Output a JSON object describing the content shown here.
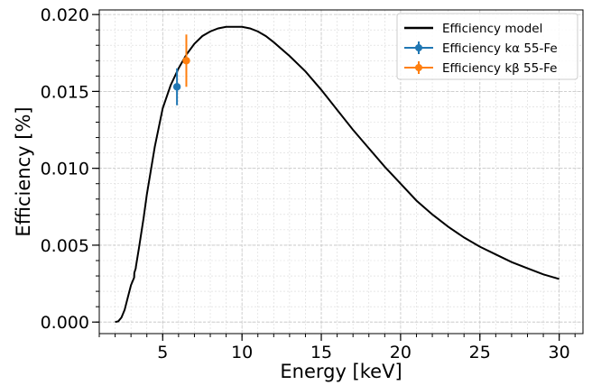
{
  "chart_data": {
    "type": "line",
    "xlabel": "Energy [keV]",
    "ylabel": "Efficiency [%]",
    "xlim": [
      1.0,
      31.5
    ],
    "ylim": [
      -0.00075,
      0.0203
    ],
    "xticks": [
      5,
      10,
      15,
      20,
      25,
      30
    ],
    "xtick_labels": [
      "5",
      "10",
      "15",
      "20",
      "25",
      "30"
    ],
    "yticks": [
      0.0,
      0.005,
      0.01,
      0.015,
      0.02
    ],
    "ytick_labels": [
      "0.000",
      "0.005",
      "0.010",
      "0.015",
      "0.020"
    ],
    "grid": true,
    "legend_position": "top-right",
    "series": [
      {
        "name": "Efficiency model",
        "kind": "line",
        "color": "#000000",
        "x": [
          2.0,
          2.2,
          2.4,
          2.6,
          2.8,
          3.0,
          3.2,
          3.21,
          3.3,
          3.31,
          3.5,
          3.8,
          4.0,
          4.5,
          5.0,
          5.5,
          6.0,
          6.5,
          7.0,
          7.5,
          8.0,
          8.5,
          9.0,
          9.5,
          10.0,
          10.5,
          11.0,
          11.5,
          12.0,
          13.0,
          14.0,
          15.0,
          16.0,
          17.0,
          18.0,
          19.0,
          20.0,
          21.0,
          22.0,
          23.0,
          24.0,
          25.0,
          26.0,
          27.0,
          28.0,
          29.0,
          30.0
        ],
        "y": [
          0.0,
          5e-05,
          0.0003,
          0.0008,
          0.0016,
          0.0024,
          0.0029,
          0.0032,
          0.0035,
          0.0036,
          0.0048,
          0.0068,
          0.0083,
          0.0114,
          0.0139,
          0.0154,
          0.0165,
          0.0174,
          0.0181,
          0.0186,
          0.0189,
          0.0191,
          0.0192,
          0.0192,
          0.0192,
          0.0191,
          0.0189,
          0.0186,
          0.0182,
          0.0173,
          0.0163,
          0.0151,
          0.0138,
          0.0125,
          0.0113,
          0.0101,
          0.009,
          0.0079,
          0.007,
          0.0062,
          0.0055,
          0.0049,
          0.0044,
          0.0039,
          0.0035,
          0.0031,
          0.0028
        ]
      },
      {
        "name": "Efficiency kα 55-Fe",
        "kind": "errorbar",
        "color": "#1f77b4",
        "x": [
          5.9
        ],
        "y": [
          0.0153
        ],
        "yerr": [
          0.0012
        ]
      },
      {
        "name": "Efficiency kβ 55-Fe",
        "kind": "errorbar",
        "color": "#ff7f0e",
        "x": [
          6.49
        ],
        "y": [
          0.017
        ],
        "yerr": [
          0.0017
        ]
      }
    ]
  }
}
